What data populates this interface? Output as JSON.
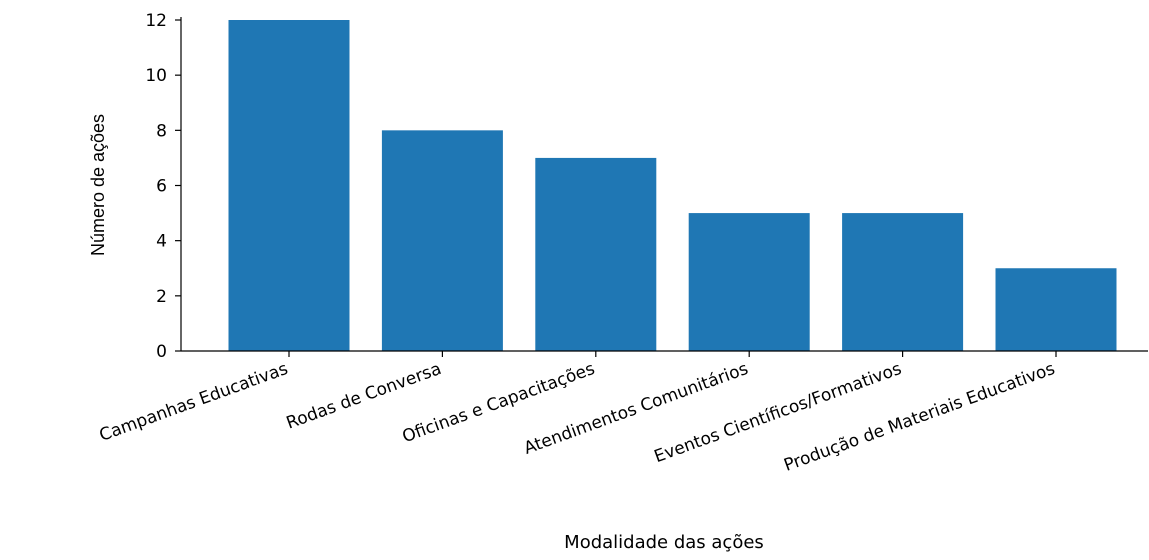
{
  "chart_data": {
    "type": "bar",
    "categories": [
      "Campanhas Educativas",
      "Rodas de Conversa",
      "Oficinas e Capacitações",
      "Atendimentos Comunitários",
      "Eventos Científicos/Formativos",
      "Produção de Materiais Educativos"
    ],
    "values": [
      12,
      8,
      7,
      5,
      5,
      3
    ],
    "title": "",
    "xlabel": "Modalidade das ações",
    "ylabel": "Número de ações",
    "ylim": [
      0,
      12
    ],
    "yticks": [
      0,
      2,
      4,
      6,
      8,
      10,
      12
    ],
    "ytick_labels": [
      "0",
      "2",
      "4",
      "6",
      "8",
      "10",
      "12"
    ],
    "bar_color": "#1f77b4",
    "grid": false,
    "legend": "none",
    "spines": [
      "left",
      "bottom"
    ]
  }
}
